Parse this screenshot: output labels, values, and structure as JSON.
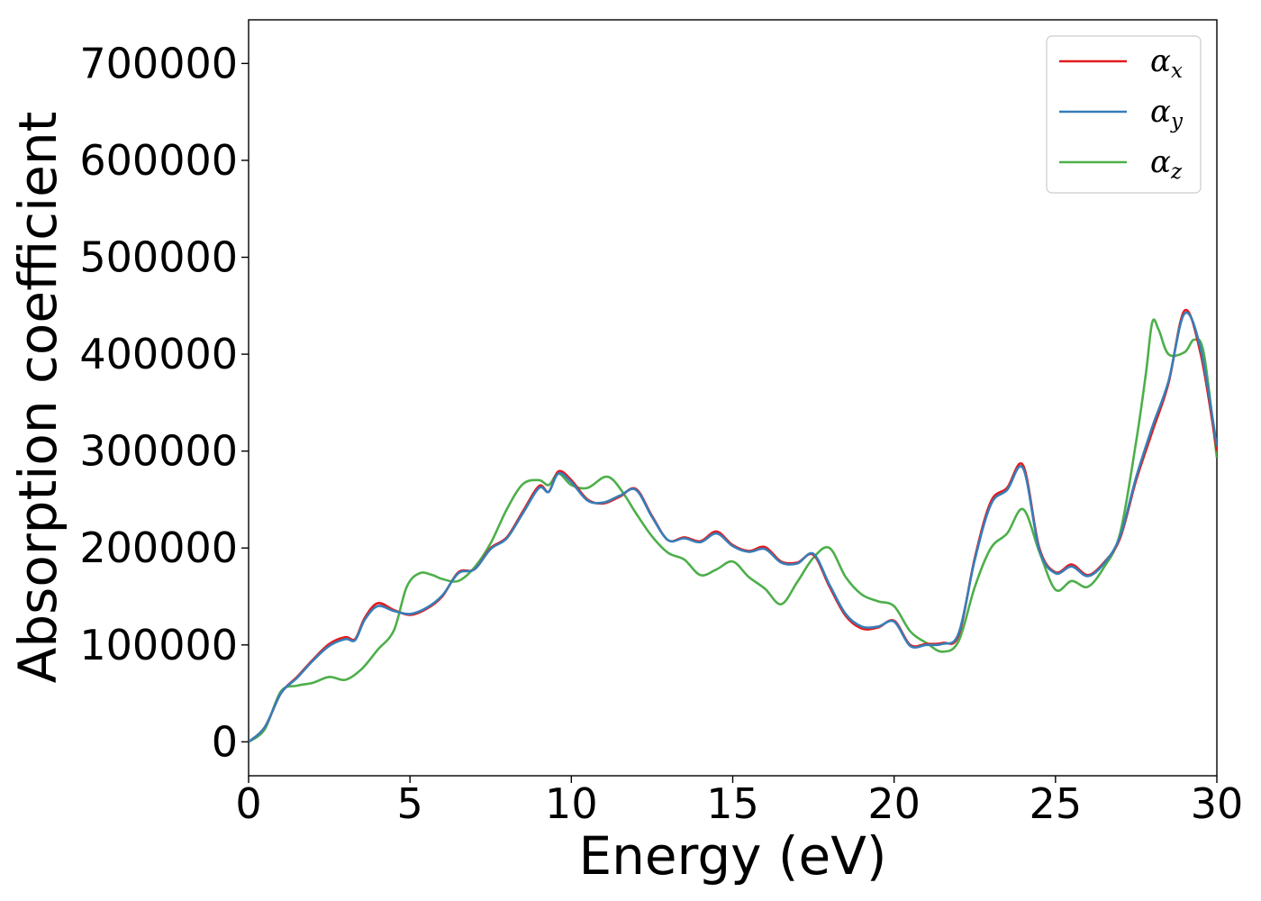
{
  "chart_data": {
    "type": "line",
    "title": "",
    "xlabel": "Energy (eV)",
    "ylabel": "Absorption coefficient",
    "xlim": [
      0,
      30
    ],
    "ylim": [
      -35000,
      745000
    ],
    "xticks": [
      0,
      5,
      10,
      15,
      20,
      25,
      30
    ],
    "xtick_labels": [
      "0",
      "5",
      "10",
      "15",
      "20",
      "25",
      "30"
    ],
    "yticks": [
      0,
      100000,
      200000,
      300000,
      400000,
      500000,
      600000,
      700000
    ],
    "ytick_labels": [
      "0",
      "100000",
      "200000",
      "300000",
      "400000",
      "500000",
      "600000",
      "700000"
    ],
    "grid": false,
    "legend_position": "top-right",
    "series": [
      {
        "name": "α",
        "subscript": "x",
        "color": "#e41a1c",
        "points": [
          [
            0,
            0
          ],
          [
            0.5,
            15000
          ],
          [
            1,
            50000
          ],
          [
            1.5,
            67000
          ],
          [
            2,
            85000
          ],
          [
            2.5,
            101000
          ],
          [
            3,
            108000
          ],
          [
            3.3,
            106000
          ],
          [
            3.6,
            128000
          ],
          [
            4,
            143000
          ],
          [
            4.5,
            136000
          ],
          [
            5,
            131000
          ],
          [
            5.5,
            137000
          ],
          [
            6,
            150000
          ],
          [
            6.5,
            175000
          ],
          [
            7,
            178000
          ],
          [
            7.5,
            200000
          ],
          [
            8,
            211000
          ],
          [
            8.5,
            238000
          ],
          [
            9,
            264000
          ],
          [
            9.3,
            258000
          ],
          [
            9.6,
            279000
          ],
          [
            10,
            270000
          ],
          [
            10.5,
            250000
          ],
          [
            11,
            246000
          ],
          [
            11.5,
            253000
          ],
          [
            12,
            261000
          ],
          [
            12.5,
            233000
          ],
          [
            13,
            208000
          ],
          [
            13.5,
            211000
          ],
          [
            14,
            207000
          ],
          [
            14.5,
            217000
          ],
          [
            15,
            203000
          ],
          [
            15.5,
            197000
          ],
          [
            16,
            201000
          ],
          [
            16.5,
            186000
          ],
          [
            17,
            185000
          ],
          [
            17.5,
            193000
          ],
          [
            18,
            160000
          ],
          [
            18.5,
            130000
          ],
          [
            19,
            117000
          ],
          [
            19.5,
            118000
          ],
          [
            20,
            125000
          ],
          [
            20.5,
            100000
          ],
          [
            21,
            101000
          ],
          [
            21.5,
            102000
          ],
          [
            22,
            110000
          ],
          [
            22.5,
            190000
          ],
          [
            23,
            248000
          ],
          [
            23.5,
            262000
          ],
          [
            24,
            285000
          ],
          [
            24.5,
            200000
          ],
          [
            25,
            175000
          ],
          [
            25.5,
            183000
          ],
          [
            26,
            172000
          ],
          [
            26.5,
            185000
          ],
          [
            27,
            210000
          ],
          [
            27.5,
            270000
          ],
          [
            28,
            320000
          ],
          [
            28.5,
            370000
          ],
          [
            29,
            445000
          ],
          [
            29.5,
            400000
          ],
          [
            30,
            300000
          ]
        ]
      },
      {
        "name": "α",
        "subscript": "y",
        "color": "#377eb8",
        "points": [
          [
            0,
            0
          ],
          [
            0.5,
            15000
          ],
          [
            1,
            50000
          ],
          [
            1.5,
            66000
          ],
          [
            2,
            84000
          ],
          [
            2.5,
            99000
          ],
          [
            3,
            106000
          ],
          [
            3.3,
            105000
          ],
          [
            3.6,
            126000
          ],
          [
            4,
            140000
          ],
          [
            4.5,
            135000
          ],
          [
            5,
            132000
          ],
          [
            5.5,
            138000
          ],
          [
            6,
            151000
          ],
          [
            6.5,
            174000
          ],
          [
            7,
            178000
          ],
          [
            7.5,
            199000
          ],
          [
            8,
            210000
          ],
          [
            8.5,
            236000
          ],
          [
            9,
            262000
          ],
          [
            9.3,
            258000
          ],
          [
            9.6,
            277000
          ],
          [
            10,
            268000
          ],
          [
            10.5,
            249000
          ],
          [
            11,
            247000
          ],
          [
            11.5,
            254000
          ],
          [
            12,
            260000
          ],
          [
            12.5,
            232000
          ],
          [
            13,
            208000
          ],
          [
            13.5,
            210000
          ],
          [
            14,
            206000
          ],
          [
            14.5,
            215000
          ],
          [
            15,
            202000
          ],
          [
            15.5,
            196000
          ],
          [
            16,
            199000
          ],
          [
            16.5,
            185000
          ],
          [
            17,
            184000
          ],
          [
            17.5,
            194000
          ],
          [
            18,
            162000
          ],
          [
            18.5,
            132000
          ],
          [
            19,
            119000
          ],
          [
            19.5,
            119000
          ],
          [
            20,
            124000
          ],
          [
            20.5,
            99000
          ],
          [
            21,
            100000
          ],
          [
            21.5,
            101000
          ],
          [
            22,
            112000
          ],
          [
            22.5,
            188000
          ],
          [
            23,
            245000
          ],
          [
            23.5,
            260000
          ],
          [
            24,
            282000
          ],
          [
            24.5,
            198000
          ],
          [
            25,
            174000
          ],
          [
            25.5,
            181000
          ],
          [
            26,
            171000
          ],
          [
            26.5,
            184000
          ],
          [
            27,
            212000
          ],
          [
            27.5,
            273000
          ],
          [
            28,
            325000
          ],
          [
            28.5,
            372000
          ],
          [
            29,
            442000
          ],
          [
            29.5,
            405000
          ],
          [
            30,
            305000
          ]
        ]
      },
      {
        "name": "α",
        "subscript": "z",
        "color": "#4daf4a",
        "points": [
          [
            0,
            0
          ],
          [
            0.5,
            13000
          ],
          [
            1,
            52000
          ],
          [
            1.5,
            58000
          ],
          [
            2,
            61000
          ],
          [
            2.5,
            67000
          ],
          [
            3,
            64000
          ],
          [
            3.5,
            75000
          ],
          [
            4,
            95000
          ],
          [
            4.5,
            115000
          ],
          [
            4.9,
            160000
          ],
          [
            5.3,
            174000
          ],
          [
            5.7,
            172000
          ],
          [
            6,
            168000
          ],
          [
            6.5,
            166000
          ],
          [
            7,
            180000
          ],
          [
            7.5,
            205000
          ],
          [
            8,
            240000
          ],
          [
            8.5,
            266000
          ],
          [
            9,
            270000
          ],
          [
            9.3,
            265000
          ],
          [
            9.6,
            277000
          ],
          [
            10,
            265000
          ],
          [
            10.5,
            262000
          ],
          [
            11,
            273000
          ],
          [
            11.3,
            270000
          ],
          [
            11.7,
            252000
          ],
          [
            12,
            236000
          ],
          [
            12.5,
            212000
          ],
          [
            13,
            195000
          ],
          [
            13.5,
            188000
          ],
          [
            14,
            172000
          ],
          [
            14.5,
            178000
          ],
          [
            15,
            186000
          ],
          [
            15.5,
            170000
          ],
          [
            16,
            158000
          ],
          [
            16.5,
            142000
          ],
          [
            17,
            165000
          ],
          [
            17.5,
            190000
          ],
          [
            18,
            200000
          ],
          [
            18.5,
            170000
          ],
          [
            19,
            152000
          ],
          [
            19.5,
            145000
          ],
          [
            20,
            140000
          ],
          [
            20.5,
            114000
          ],
          [
            21,
            102000
          ],
          [
            21.5,
            93000
          ],
          [
            22,
            104000
          ],
          [
            22.5,
            160000
          ],
          [
            23,
            200000
          ],
          [
            23.5,
            215000
          ],
          [
            24,
            240000
          ],
          [
            24.5,
            196000
          ],
          [
            25,
            157000
          ],
          [
            25.5,
            166000
          ],
          [
            26,
            160000
          ],
          [
            26.5,
            180000
          ],
          [
            27,
            215000
          ],
          [
            27.5,
            310000
          ],
          [
            27.8,
            380000
          ],
          [
            28,
            433000
          ],
          [
            28.2,
            425000
          ],
          [
            28.5,
            400000
          ],
          [
            29,
            402000
          ],
          [
            29.3,
            415000
          ],
          [
            29.6,
            400000
          ],
          [
            30,
            293000
          ]
        ]
      }
    ]
  }
}
